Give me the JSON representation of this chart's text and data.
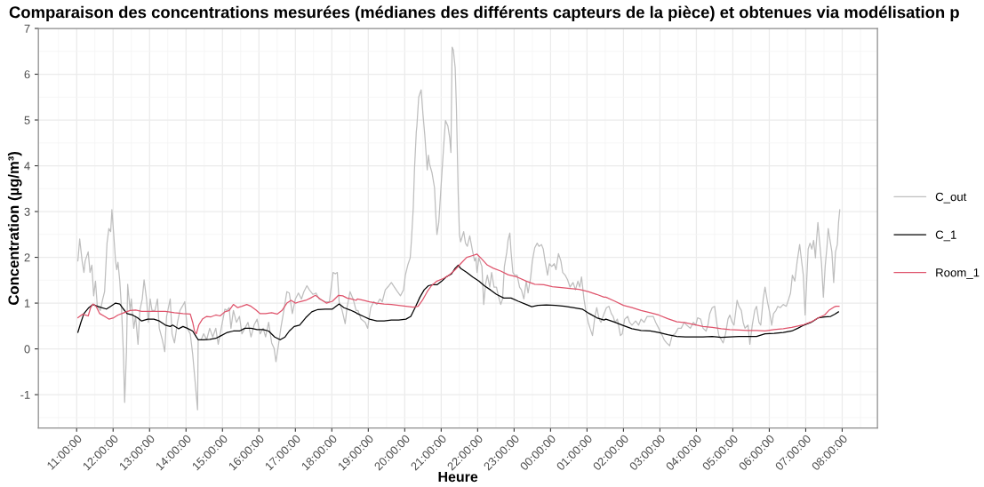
{
  "chart_data": {
    "type": "line",
    "title": "Comparaison des concentrations mesurées (médianes des différents capteurs de la pièce) et obtenues via modélisation p",
    "xlabel": "Heure",
    "ylabel": "Concentration (µg/m³)",
    "xlim": [
      "2000-01-01T09:57",
      "2000-01-02T08:58"
    ],
    "ylim": [
      -1.73,
      7.0
    ],
    "xticks": [
      {
        "value": "2000-01-01T11:00",
        "label": "11:00:00"
      },
      {
        "value": "2000-01-01T12:00",
        "label": "12:00:00"
      },
      {
        "value": "2000-01-01T13:00",
        "label": "13:00:00"
      },
      {
        "value": "2000-01-01T14:00",
        "label": "14:00:00"
      },
      {
        "value": "2000-01-01T15:00",
        "label": "15:00:00"
      },
      {
        "value": "2000-01-01T16:00",
        "label": "16:00:00"
      },
      {
        "value": "2000-01-01T17:00",
        "label": "17:00:00"
      },
      {
        "value": "2000-01-01T18:00",
        "label": "18:00:00"
      },
      {
        "value": "2000-01-01T19:00",
        "label": "19:00:00"
      },
      {
        "value": "2000-01-01T20:00",
        "label": "20:00:00"
      },
      {
        "value": "2000-01-01T21:00",
        "label": "21:00:00"
      },
      {
        "value": "2000-01-01T22:00",
        "label": "22:00:00"
      },
      {
        "value": "2000-01-01T23:00",
        "label": "23:00:00"
      },
      {
        "value": "2000-01-02T00:00",
        "label": "00:00:00"
      },
      {
        "value": "2000-01-02T01:00",
        "label": "01:00:00"
      },
      {
        "value": "2000-01-02T02:00",
        "label": "02:00:00"
      },
      {
        "value": "2000-01-02T03:00",
        "label": "03:00:00"
      },
      {
        "value": "2000-01-02T04:00",
        "label": "04:00:00"
      },
      {
        "value": "2000-01-02T05:00",
        "label": "05:00:00"
      },
      {
        "value": "2000-01-02T06:00",
        "label": "06:00:00"
      },
      {
        "value": "2000-01-02T07:00",
        "label": "07:00:00"
      },
      {
        "value": "2000-01-02T08:00",
        "label": "08:00:00"
      }
    ],
    "yticks": [
      -1,
      0,
      1,
      2,
      3,
      4,
      5,
      6,
      7
    ],
    "grid": true,
    "legend": "right",
    "line_style": "solid",
    "series": [
      {
        "name": "C_out",
        "color": "#bebebe",
        "x": [
          "2000-01-01T11:02",
          "2000-01-01T11:05",
          "2000-01-01T11:09",
          "2000-01-01T11:12",
          "2000-01-01T11:14",
          "2000-01-01T11:19",
          "2000-01-01T11:22",
          "2000-01-01T11:25",
          "2000-01-01T11:28",
          "2000-01-01T11:31",
          "2000-01-01T11:34",
          "2000-01-01T11:39",
          "2000-01-01T11:43",
          "2000-01-01T11:46",
          "2000-01-01T11:50",
          "2000-01-01T11:53",
          "2000-01-01T11:56",
          "2000-01-01T11:58",
          "2000-01-01T12:01",
          "2000-01-01T12:04",
          "2000-01-01T12:06",
          "2000-01-01T12:08",
          "2000-01-01T12:11",
          "2000-01-01T12:14",
          "2000-01-01T12:17",
          "2000-01-01T12:19",
          "2000-01-01T12:22",
          "2000-01-01T12:24",
          "2000-01-01T12:28",
          "2000-01-01T12:30",
          "2000-01-01T12:34",
          "2000-01-01T12:37",
          "2000-01-01T12:41",
          "2000-01-01T12:44",
          "2000-01-01T12:48",
          "2000-01-01T12:51",
          "2000-01-01T12:55",
          "2000-01-01T12:58",
          "2000-01-01T13:01",
          "2000-01-01T13:04",
          "2000-01-01T13:09",
          "2000-01-01T13:13",
          "2000-01-01T13:16",
          "2000-01-01T13:21",
          "2000-01-01T13:25",
          "2000-01-01T13:28",
          "2000-01-01T13:34",
          "2000-01-01T13:37",
          "2000-01-01T13:41",
          "2000-01-01T13:46",
          "2000-01-01T13:50",
          "2000-01-01T13:54",
          "2000-01-01T13:58",
          "2000-01-01T14:02",
          "2000-01-01T14:07",
          "2000-01-01T14:11",
          "2000-01-01T14:14",
          "2000-01-01T14:17",
          "2000-01-01T14:19",
          "2000-01-01T14:20",
          "2000-01-01T14:25",
          "2000-01-01T14:29",
          "2000-01-01T14:34",
          "2000-01-01T14:39",
          "2000-01-01T14:44",
          "2000-01-01T14:49",
          "2000-01-01T14:53",
          "2000-01-01T14:58",
          "2000-01-01T15:04",
          "2000-01-01T15:07",
          "2000-01-01T15:11",
          "2000-01-01T15:14",
          "2000-01-01T15:18",
          "2000-01-01T15:23",
          "2000-01-01T15:28",
          "2000-01-01T15:32",
          "2000-01-01T15:37",
          "2000-01-01T15:42",
          "2000-01-01T15:47",
          "2000-01-01T15:52",
          "2000-01-01T15:57",
          "2000-01-01T16:02",
          "2000-01-01T16:07",
          "2000-01-01T16:11",
          "2000-01-01T16:16",
          "2000-01-01T16:21",
          "2000-01-01T16:25",
          "2000-01-01T16:28",
          "2000-01-01T16:32",
          "2000-01-01T16:36",
          "2000-01-01T16:41",
          "2000-01-01T16:46",
          "2000-01-01T16:50",
          "2000-01-01T16:55",
          "2000-01-01T17:00",
          "2000-01-01T17:05",
          "2000-01-01T17:10",
          "2000-01-01T17:14",
          "2000-01-01T17:19",
          "2000-01-01T17:23",
          "2000-01-01T17:29",
          "2000-01-01T17:34",
          "2000-01-01T17:39",
          "2000-01-01T17:44",
          "2000-01-01T17:49",
          "2000-01-01T17:56",
          "2000-01-01T18:02",
          "2000-01-01T18:06",
          "2000-01-01T18:09",
          "2000-01-01T18:12",
          "2000-01-01T18:17",
          "2000-01-01T18:22",
          "2000-01-01T18:25",
          "2000-01-01T18:30",
          "2000-01-01T18:35",
          "2000-01-01T18:40",
          "2000-01-01T18:43",
          "2000-01-01T18:48",
          "2000-01-01T18:55",
          "2000-01-01T18:59",
          "2000-01-01T19:04",
          "2000-01-01T19:09",
          "2000-01-01T19:14",
          "2000-01-01T19:19",
          "2000-01-01T19:23",
          "2000-01-01T19:28",
          "2000-01-01T19:34",
          "2000-01-01T19:38",
          "2000-01-01T19:43",
          "2000-01-01T19:48",
          "2000-01-01T19:53",
          "2000-01-01T19:58",
          "2000-01-01T20:01",
          "2000-01-01T20:05",
          "2000-01-01T20:09",
          "2000-01-01T20:11",
          "2000-01-01T20:14",
          "2000-01-01T20:16",
          "2000-01-01T20:19",
          "2000-01-01T20:20",
          "2000-01-01T20:23",
          "2000-01-01T20:27",
          "2000-01-01T20:30",
          "2000-01-01T20:33",
          "2000-01-01T20:37",
          "2000-01-01T20:39",
          "2000-01-01T20:41",
          "2000-01-01T20:45",
          "2000-01-01T20:49",
          "2000-01-01T20:51",
          "2000-01-01T20:53",
          "2000-01-01T20:56",
          "2000-01-01T20:59",
          "2000-01-01T21:04",
          "2000-01-01T21:07",
          "2000-01-01T21:11",
          "2000-01-01T21:14",
          "2000-01-01T21:16",
          "2000-01-01T21:18",
          "2000-01-01T21:20",
          "2000-01-01T21:23",
          "2000-01-01T21:25",
          "2000-01-01T21:28",
          "2000-01-01T21:30",
          "2000-01-01T21:32",
          "2000-01-01T21:37",
          "2000-01-01T21:40",
          "2000-01-01T21:43",
          "2000-01-01T21:47",
          "2000-01-01T21:51",
          "2000-01-01T21:55",
          "2000-01-01T21:57",
          "2000-01-01T21:59",
          "2000-01-01T22:02",
          "2000-01-01T22:07",
          "2000-01-01T22:10",
          "2000-01-01T22:13",
          "2000-01-01T22:16",
          "2000-01-01T22:20",
          "2000-01-01T22:23",
          "2000-01-01T22:27",
          "2000-01-01T22:31",
          "2000-01-01T22:34",
          "2000-01-01T22:38",
          "2000-01-01T22:41",
          "2000-01-01T22:44",
          "2000-01-01T22:48",
          "2000-01-01T22:50",
          "2000-01-01T22:53",
          "2000-01-01T22:55",
          "2000-01-01T22:58",
          "2000-01-01T23:01",
          "2000-01-01T23:05",
          "2000-01-01T23:09",
          "2000-01-01T23:12",
          "2000-01-01T23:16",
          "2000-01-01T23:20",
          "2000-01-01T23:23",
          "2000-01-01T23:27",
          "2000-01-01T23:30",
          "2000-01-01T23:34",
          "2000-01-01T23:38",
          "2000-01-01T23:41",
          "2000-01-01T23:45",
          "2000-01-01T23:48",
          "2000-01-01T23:51",
          "2000-01-01T23:55",
          "2000-01-01T23:58",
          "2000-01-02T00:02",
          "2000-01-02T00:06",
          "2000-01-02T00:09",
          "2000-01-02T00:13",
          "2000-01-02T00:17",
          "2000-01-02T00:20",
          "2000-01-02T00:24",
          "2000-01-02T00:28",
          "2000-01-02T00:32",
          "2000-01-02T00:37",
          "2000-01-02T00:41",
          "2000-01-02T00:45",
          "2000-01-02T00:48",
          "2000-01-02T00:51",
          "2000-01-02T00:55",
          "2000-01-02T00:58",
          "2000-01-02T01:02",
          "2000-01-02T01:05",
          "2000-01-02T01:09",
          "2000-01-02T01:13",
          "2000-01-02T01:16",
          "2000-01-02T01:20",
          "2000-01-02T01:23",
          "2000-01-02T01:28",
          "2000-01-02T01:32",
          "2000-01-02T01:36",
          "2000-01-02T01:40",
          "2000-01-02T01:43",
          "2000-01-02T01:46",
          "2000-01-02T01:50",
          "2000-01-02T01:55",
          "2000-01-02T01:58",
          "2000-01-02T02:02",
          "2000-01-02T02:07",
          "2000-01-02T02:10",
          "2000-01-02T02:14",
          "2000-01-02T02:20",
          "2000-01-02T02:25",
          "2000-01-02T02:29",
          "2000-01-02T02:34",
          "2000-01-02T02:39",
          "2000-01-02T02:44",
          "2000-01-02T02:49",
          "2000-01-02T02:53",
          "2000-01-02T02:58",
          "2000-01-02T03:04",
          "2000-01-02T03:07",
          "2000-01-02T03:11",
          "2000-01-02T03:16",
          "2000-01-02T03:20",
          "2000-01-02T03:25",
          "2000-01-02T03:30",
          "2000-01-02T03:35",
          "2000-01-02T03:40",
          "2000-01-02T03:44",
          "2000-01-02T03:50",
          "2000-01-02T03:55",
          "2000-01-02T03:59",
          "2000-01-02T04:02",
          "2000-01-02T04:07",
          "2000-01-02T04:11",
          "2000-01-02T04:16",
          "2000-01-02T04:19",
          "2000-01-02T04:22",
          "2000-01-02T04:26",
          "2000-01-02T04:30",
          "2000-01-02T04:34",
          "2000-01-02T04:37",
          "2000-01-02T04:41",
          "2000-01-02T04:44",
          "2000-01-02T04:48",
          "2000-01-02T04:52",
          "2000-01-02T04:55",
          "2000-01-02T04:59",
          "2000-01-02T05:02",
          "2000-01-02T05:07",
          "2000-01-02T05:10",
          "2000-01-02T05:14",
          "2000-01-02T05:17",
          "2000-01-02T05:20",
          "2000-01-02T05:25",
          "2000-01-02T05:28",
          "2000-01-02T05:32",
          "2000-01-02T05:36",
          "2000-01-02T05:39",
          "2000-01-02T05:43",
          "2000-01-02T05:46",
          "2000-01-02T05:50",
          "2000-01-02T05:53",
          "2000-01-02T05:57",
          "2000-01-02T06:00",
          "2000-01-02T06:04",
          "2000-01-02T06:07",
          "2000-01-02T06:11",
          "2000-01-02T06:14",
          "2000-01-02T06:18",
          "2000-01-02T06:23",
          "2000-01-02T06:28",
          "2000-01-02T06:32",
          "2000-01-02T06:35",
          "2000-01-02T06:38",
          "2000-01-02T06:42",
          "2000-01-02T06:46",
          "2000-01-02T06:50",
          "2000-01-02T06:52",
          "2000-01-02T06:56",
          "2000-01-02T06:59",
          "2000-01-02T07:02",
          "2000-01-02T07:04",
          "2000-01-02T07:07",
          "2000-01-02T07:10",
          "2000-01-02T07:13",
          "2000-01-02T07:16",
          "2000-01-02T07:17",
          "2000-01-02T07:20",
          "2000-01-02T07:23",
          "2000-01-02T07:26",
          "2000-01-02T07:29",
          "2000-01-02T07:32",
          "2000-01-02T07:35",
          "2000-01-02T07:37",
          "2000-01-02T07:40",
          "2000-01-02T07:43",
          "2000-01-02T07:46",
          "2000-01-02T07:49",
          "2000-01-02T07:52",
          "2000-01-02T07:54",
          "2000-01-02T07:56"
        ],
        "values": [
          1.92,
          2.4,
          1.92,
          1.67,
          1.92,
          2.12,
          1.67,
          1.83,
          1.16,
          1.48,
          0.93,
          0.84,
          1.09,
          1.25,
          2.31,
          2.63,
          2.56,
          3.04,
          2.5,
          1.92,
          1.73,
          1.89,
          1.48,
          0.84,
          -0.12,
          -1.17,
          -0.06,
          1.41,
          0.84,
          1.09,
          0.45,
          0.71,
          0.1,
          0.84,
          1.09,
          1.51,
          1.09,
          0.58,
          1.09,
          0.84,
          0.84,
          1.09,
          0.45,
          0.2,
          -0.06,
          0.71,
          1.09,
          0.33,
          0.13,
          0.58,
          0.84,
          0.93,
          1.03,
          0.45,
          0.33,
          -0.12,
          -0.57,
          -1.02,
          -1.33,
          0.2,
          0.2,
          0.33,
          0.2,
          0.45,
          0.26,
          0.45,
          0.1,
          0.45,
          0.87,
          0.84,
          0.9,
          0.45,
          0.84,
          0.58,
          0.71,
          0.33,
          0.45,
          0.58,
          0.26,
          0.52,
          0.65,
          0.33,
          0.45,
          0.26,
          0.58,
          0.13,
          0.01,
          -0.28,
          0.07,
          0.45,
          0.84,
          1.25,
          1.22,
          0.77,
          1.09,
          1.22,
          1.09,
          1.25,
          1.38,
          1.29,
          1.19,
          1.22,
          1.09,
          1.06,
          1.03,
          1.03,
          1.67,
          1.64,
          1.67,
          1.03,
          0.84,
          0.55,
          0.9,
          1.25,
          1.09,
          0.84,
          0.84,
          0.65,
          0.58,
          0.45,
          0.9,
          1.03,
          0.97,
          1.09,
          1.03,
          1.29,
          1.38,
          1.45,
          1.35,
          1.25,
          1.16,
          1.29,
          1.61,
          1.83,
          1.99,
          2.37,
          3.07,
          3.91,
          4.74,
          4.87,
          5.5,
          5.66,
          5.12,
          4.67,
          3.91,
          4.23,
          4.03,
          3.84,
          3.52,
          2.95,
          2.5,
          2.76,
          3.39,
          4.42,
          4.99,
          4.87,
          4.61,
          4.29,
          6.59,
          6.53,
          6.14,
          5.31,
          3.39,
          2.5,
          2.34,
          2.56,
          2.31,
          2.24,
          2.47,
          2.18,
          1.92,
          1.99,
          1.67,
          1.99,
          1.8,
          0.97,
          1.41,
          1.61,
          1.35,
          1.67,
          1.35,
          1.35,
          1.16,
          0.97,
          1.09,
          1.8,
          2.12,
          2.37,
          2.53,
          2.12,
          1.67,
          1.61,
          1.61,
          1.35,
          1.29,
          1.09,
          1.48,
          1.22,
          1.54,
          1.92,
          2.21,
          2.31,
          2.24,
          2.28,
          2.18,
          1.92,
          1.61,
          1.86,
          1.8,
          1.86,
          1.73,
          2.08,
          1.92,
          1.67,
          1.61,
          1.51,
          1.35,
          1.45,
          1.29,
          1.48,
          1.35,
          1.57,
          1.09,
          0.84,
          0.58,
          0.45,
          0.29,
          0.71,
          0.9,
          0.65,
          0.58,
          0.77,
          0.9,
          0.93,
          0.77,
          0.71,
          0.58,
          0.65,
          0.29,
          0.33,
          0.65,
          0.71,
          0.58,
          0.52,
          0.61,
          0.52,
          0.65,
          0.58,
          0.71,
          0.71,
          0.71,
          0.58,
          0.45,
          0.29,
          0.2,
          0.13,
          0.07,
          0.29,
          0.33,
          0.45,
          0.45,
          0.58,
          0.52,
          0.45,
          0.58,
          0.52,
          0.68,
          0.65,
          0.45,
          0.39,
          0.52,
          0.77,
          0.9,
          0.93,
          0.52,
          0.29,
          0.2,
          0.13,
          0.33,
          0.65,
          0.74,
          0.58,
          0.52,
          1.06,
          0.93,
          0.84,
          0.58,
          0.45,
          0.52,
          0.1,
          0.52,
          0.84,
          0.93,
          0.58,
          0.52,
          1.09,
          1.35,
          1.03,
          0.84,
          0.52,
          0.77,
          0.84,
          0.93,
          0.9,
          0.97,
          0.93,
          1.09,
          1.22,
          1.61,
          1.48,
          1.92,
          2.28,
          2.05,
          1.61,
          0.74,
          1.61,
          2.18,
          2.31,
          2.18,
          2.37,
          1.99,
          2.24,
          2.76,
          2.31,
          1.86,
          1.13,
          1.8,
          2.24,
          2.63,
          2.37,
          2.12,
          1.45,
          2.12,
          2.28,
          2.76,
          3.04
        ]
      },
      {
        "name": "C_1",
        "color": "#000000",
        "x": [
          "2000-01-01T11:02",
          "2000-01-01T11:07",
          "2000-01-01T11:12",
          "2000-01-01T11:20",
          "2000-01-01T11:27",
          "2000-01-01T11:34",
          "2000-01-01T11:41",
          "2000-01-01T11:49",
          "2000-01-01T11:56",
          "2000-01-01T12:04",
          "2000-01-01T12:11",
          "2000-01-01T12:17",
          "2000-01-01T12:23",
          "2000-01-01T12:32",
          "2000-01-01T12:40",
          "2000-01-01T12:47",
          "2000-01-01T12:57",
          "2000-01-01T13:07",
          "2000-01-01T13:16",
          "2000-01-01T13:26",
          "2000-01-01T13:34",
          "2000-01-01T13:38",
          "2000-01-01T13:48",
          "2000-01-01T13:55",
          "2000-01-01T14:02",
          "2000-01-01T14:11",
          "2000-01-01T14:17",
          "2000-01-01T14:20",
          "2000-01-01T14:29",
          "2000-01-01T14:39",
          "2000-01-01T14:49",
          "2000-01-01T14:58",
          "2000-01-01T15:08",
          "2000-01-01T15:18",
          "2000-01-01T15:28",
          "2000-01-01T15:37",
          "2000-01-01T15:47",
          "2000-01-01T15:57",
          "2000-01-01T16:07",
          "2000-01-01T16:16",
          "2000-01-01T16:26",
          "2000-01-01T16:35",
          "2000-01-01T16:43",
          "2000-01-01T16:50",
          "2000-01-01T16:58",
          "2000-01-01T17:07",
          "2000-01-01T17:17",
          "2000-01-01T17:27",
          "2000-01-01T17:37",
          "2000-01-01T17:49",
          "2000-01-01T18:01",
          "2000-01-01T18:12",
          "2000-01-01T18:20",
          "2000-01-01T18:30",
          "2000-01-01T18:40",
          "2000-01-01T18:42",
          "2000-01-01T18:52",
          "2000-01-01T19:02",
          "2000-01-01T19:14",
          "2000-01-01T19:26",
          "2000-01-01T19:38",
          "2000-01-01T19:50",
          "2000-01-01T20:02",
          "2000-01-01T20:10",
          "2000-01-01T20:17",
          "2000-01-01T20:25",
          "2000-01-01T20:32",
          "2000-01-01T20:39",
          "2000-01-01T20:46",
          "2000-01-01T20:53",
          "2000-01-01T21:01",
          "2000-01-01T21:08",
          "2000-01-01T21:17",
          "2000-01-01T21:23",
          "2000-01-01T21:28",
          "2000-01-01T21:32",
          "2000-01-01T21:42",
          "2000-01-01T21:52",
          "2000-01-01T22:02",
          "2000-01-01T22:11",
          "2000-01-01T22:21",
          "2000-01-01T22:31",
          "2000-01-01T22:43",
          "2000-01-01T22:55",
          "2000-01-01T23:07",
          "2000-01-01T23:20",
          "2000-01-01T23:29",
          "2000-01-01T23:39",
          "2000-01-01T23:53",
          "2000-01-02T00:08",
          "2000-01-02T00:23",
          "2000-01-02T00:37",
          "2000-01-02T00:52",
          "2000-01-02T01:04",
          "2000-01-02T01:16",
          "2000-01-02T01:28",
          "2000-01-02T01:31",
          "2000-01-02T01:46",
          "2000-01-02T02:00",
          "2000-01-02T02:14",
          "2000-01-02T02:29",
          "2000-01-02T02:44",
          "2000-01-02T02:58",
          "2000-01-02T03:13",
          "2000-01-02T03:28",
          "2000-01-02T03:42",
          "2000-01-02T03:57",
          "2000-01-02T04:11",
          "2000-01-02T04:26",
          "2000-01-02T04:41",
          "2000-01-02T04:55",
          "2000-01-02T05:10",
          "2000-01-02T05:25",
          "2000-01-02T05:39",
          "2000-01-02T05:53",
          "2000-01-02T06:08",
          "2000-01-02T06:23",
          "2000-01-02T06:37",
          "2000-01-02T06:47",
          "2000-01-02T06:57",
          "2000-01-02T07:09",
          "2000-01-02T07:21",
          "2000-01-02T07:31",
          "2000-01-02T07:41",
          "2000-01-02T07:48",
          "2000-01-02T07:54"
        ],
        "values": [
          0.36,
          0.58,
          0.77,
          0.9,
          0.97,
          0.93,
          0.9,
          0.87,
          0.93,
          1.0,
          0.98,
          0.87,
          0.77,
          0.74,
          0.68,
          0.61,
          0.65,
          0.65,
          0.61,
          0.52,
          0.49,
          0.52,
          0.44,
          0.49,
          0.45,
          0.39,
          0.26,
          0.2,
          0.2,
          0.21,
          0.23,
          0.29,
          0.36,
          0.39,
          0.39,
          0.45,
          0.45,
          0.42,
          0.42,
          0.39,
          0.26,
          0.2,
          0.26,
          0.39,
          0.49,
          0.52,
          0.68,
          0.81,
          0.86,
          0.87,
          0.87,
          0.98,
          0.9,
          0.85,
          0.79,
          0.77,
          0.71,
          0.65,
          0.61,
          0.61,
          0.63,
          0.63,
          0.65,
          0.71,
          0.9,
          1.13,
          1.29,
          1.38,
          1.4,
          1.4,
          1.48,
          1.57,
          1.64,
          1.76,
          1.83,
          1.76,
          1.67,
          1.57,
          1.48,
          1.38,
          1.29,
          1.19,
          1.11,
          1.11,
          1.04,
          0.97,
          0.92,
          0.95,
          0.96,
          0.95,
          0.93,
          0.9,
          0.87,
          0.77,
          0.68,
          0.63,
          0.65,
          0.58,
          0.51,
          0.44,
          0.4,
          0.39,
          0.36,
          0.31,
          0.27,
          0.26,
          0.26,
          0.26,
          0.27,
          0.25,
          0.26,
          0.27,
          0.27,
          0.27,
          0.33,
          0.34,
          0.36,
          0.39,
          0.45,
          0.52,
          0.58,
          0.68,
          0.7,
          0.71,
          0.76,
          0.81
        ]
      },
      {
        "name": "Room_1",
        "color": "#df536b",
        "x": [
          "2000-01-01T11:02",
          "2000-01-01T11:10",
          "2000-01-01T11:14",
          "2000-01-01T11:19",
          "2000-01-01T11:23",
          "2000-01-01T11:27",
          "2000-01-01T11:32",
          "2000-01-01T11:38",
          "2000-01-01T11:46",
          "2000-01-01T11:53",
          "2000-01-01T12:01",
          "2000-01-01T12:08",
          "2000-01-01T12:18",
          "2000-01-01T12:28",
          "2000-01-01T12:37",
          "2000-01-01T12:47",
          "2000-01-01T12:57",
          "2000-01-01T13:11",
          "2000-01-01T13:26",
          "2000-01-01T13:41",
          "2000-01-01T13:55",
          "2000-01-01T14:07",
          "2000-01-01T14:11",
          "2000-01-01T14:14",
          "2000-01-01T14:17",
          "2000-01-01T14:21",
          "2000-01-01T14:27",
          "2000-01-01T14:34",
          "2000-01-01T14:41",
          "2000-01-01T14:49",
          "2000-01-01T14:56",
          "2000-01-01T15:04",
          "2000-01-01T15:11",
          "2000-01-01T15:18",
          "2000-01-01T15:25",
          "2000-01-01T15:32",
          "2000-01-01T15:40",
          "2000-01-01T15:47",
          "2000-01-01T15:55",
          "2000-01-01T16:02",
          "2000-01-01T16:11",
          "2000-01-01T16:21",
          "2000-01-01T16:30",
          "2000-01-01T16:38",
          "2000-01-01T16:46",
          "2000-01-01T16:53",
          "2000-01-01T17:00",
          "2000-01-01T17:07",
          "2000-01-01T17:17",
          "2000-01-01T17:25",
          "2000-01-01T17:33",
          "2000-01-01T17:41",
          "2000-01-01T17:51",
          "2000-01-01T18:01",
          "2000-01-01T18:11",
          "2000-01-01T18:18",
          "2000-01-01T18:25",
          "2000-01-01T18:32",
          "2000-01-01T18:40",
          "2000-01-01T18:42",
          "2000-01-01T18:52",
          "2000-01-01T19:02",
          "2000-01-01T19:14",
          "2000-01-01T19:26",
          "2000-01-01T19:38",
          "2000-01-01T19:50",
          "2000-01-01T20:02",
          "2000-01-01T20:14",
          "2000-01-01T20:22",
          "2000-01-01T20:29",
          "2000-01-01T20:37",
          "2000-01-01T20:44",
          "2000-01-01T20:53",
          "2000-01-01T21:04",
          "2000-01-01T21:13",
          "2000-01-01T21:23",
          "2000-01-01T21:32",
          "2000-01-01T21:42",
          "2000-01-01T21:52",
          "2000-01-01T21:59",
          "2000-01-01T22:07",
          "2000-01-01T22:16",
          "2000-01-01T22:26",
          "2000-01-01T22:38",
          "2000-01-01T22:50",
          "2000-01-01T23:05",
          "2000-01-01T23:20",
          "2000-01-01T23:34",
          "2000-01-01T23:49",
          "2000-01-02T00:03",
          "2000-01-02T00:18",
          "2000-01-02T00:32",
          "2000-01-02T00:47",
          "2000-01-02T01:02",
          "2000-01-02T01:16",
          "2000-01-02T01:28",
          "2000-01-02T01:31",
          "2000-01-02T01:46",
          "2000-01-02T02:00",
          "2000-01-02T02:14",
          "2000-01-02T02:29",
          "2000-01-02T02:44",
          "2000-01-02T02:58",
          "2000-01-02T03:13",
          "2000-01-02T03:28",
          "2000-01-02T03:42",
          "2000-01-02T03:57",
          "2000-01-02T04:11",
          "2000-01-02T04:26",
          "2000-01-02T04:41",
          "2000-01-02T04:55",
          "2000-01-02T05:10",
          "2000-01-02T05:25",
          "2000-01-02T05:39",
          "2000-01-02T05:53",
          "2000-01-02T06:08",
          "2000-01-02T06:23",
          "2000-01-02T06:37",
          "2000-01-02T06:47",
          "2000-01-02T06:57",
          "2000-01-02T07:09",
          "2000-01-02T07:21",
          "2000-01-02T07:31",
          "2000-01-02T07:38",
          "2000-01-02T07:46",
          "2000-01-02T07:50",
          "2000-01-02T07:55"
        ],
        "values": [
          0.68,
          0.76,
          0.74,
          0.72,
          0.9,
          0.98,
          0.93,
          0.77,
          0.71,
          0.65,
          0.68,
          0.74,
          0.79,
          0.84,
          0.85,
          0.82,
          0.82,
          0.82,
          0.82,
          0.79,
          0.77,
          0.76,
          0.58,
          0.39,
          0.33,
          0.52,
          0.65,
          0.71,
          0.7,
          0.74,
          0.72,
          0.81,
          0.84,
          0.97,
          0.9,
          0.93,
          0.97,
          0.93,
          0.85,
          0.77,
          0.77,
          0.79,
          0.76,
          0.84,
          1.0,
          1.06,
          1.0,
          1.03,
          1.06,
          1.11,
          1.17,
          1.09,
          1.0,
          1.04,
          1.17,
          1.16,
          1.11,
          1.09,
          1.06,
          1.09,
          1.06,
          1.03,
          1.0,
          0.98,
          0.97,
          0.95,
          0.93,
          0.91,
          0.93,
          1.06,
          1.25,
          1.38,
          1.48,
          1.54,
          1.61,
          1.73,
          1.86,
          2.0,
          2.04,
          2.07,
          1.96,
          1.83,
          1.76,
          1.7,
          1.62,
          1.57,
          1.48,
          1.41,
          1.4,
          1.36,
          1.34,
          1.32,
          1.3,
          1.25,
          1.19,
          1.13,
          1.13,
          1.04,
          0.95,
          0.9,
          0.84,
          0.79,
          0.74,
          0.66,
          0.59,
          0.57,
          0.53,
          0.49,
          0.47,
          0.44,
          0.42,
          0.41,
          0.4,
          0.4,
          0.39,
          0.42,
          0.44,
          0.47,
          0.5,
          0.53,
          0.59,
          0.68,
          0.74,
          0.84,
          0.91,
          0.93,
          0.93
        ]
      }
    ]
  }
}
